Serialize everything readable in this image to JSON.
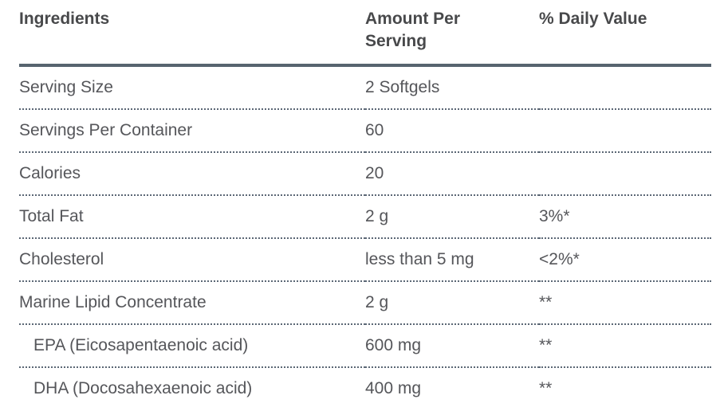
{
  "colors": {
    "header_rule": "#57646f",
    "row_divider": "#5b6775",
    "header_text": "#48494b",
    "body_text": "#55565a",
    "background": "#ffffff"
  },
  "table": {
    "columns": {
      "ingredients": "Ingredients",
      "amount": "Amount Per Serving",
      "daily_value": "% Daily Value"
    },
    "rows": [
      {
        "ingredient": "Serving Size",
        "amount": "2 Softgels",
        "daily_value": ""
      },
      {
        "ingredient": "Servings Per Container",
        "amount": "60",
        "daily_value": ""
      },
      {
        "ingredient": "Calories",
        "amount": "20",
        "daily_value": ""
      },
      {
        "ingredient": "Total Fat",
        "amount": "2 g",
        "daily_value": "3%*"
      },
      {
        "ingredient": "Cholesterol",
        "amount": "less than 5 mg",
        "daily_value": "<2%*"
      },
      {
        "ingredient": "Marine Lipid Concentrate",
        "amount": "2 g",
        "daily_value": "**"
      },
      {
        "ingredient": "EPA (Eicosapentaenoic acid)",
        "amount": "600 mg",
        "daily_value": "**"
      },
      {
        "ingredient": "DHA (Docosahexaenoic acid)",
        "amount": "400 mg",
        "daily_value": "**"
      }
    ]
  }
}
